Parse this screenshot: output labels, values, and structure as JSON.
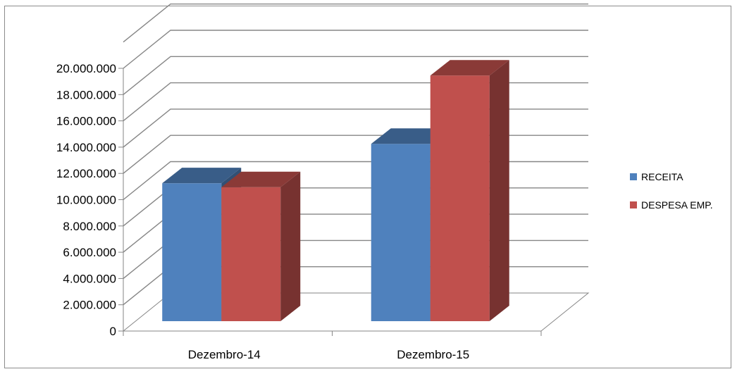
{
  "chart_data": {
    "type": "bar",
    "style": "3d-clustered-column",
    "categories": [
      "Dezembro-14",
      "Dezembro-15"
    ],
    "series": [
      {
        "name": "RECEITA",
        "values": [
          10500000,
          13500000
        ],
        "color": "#4F81BD"
      },
      {
        "name": "DESPESA EMP.",
        "values": [
          10200000,
          18700000
        ],
        "color": "#C0504D"
      }
    ],
    "yticks": [
      "0",
      "2.000.000",
      "4.000.000",
      "6.000.000",
      "8.000.000",
      "10.000.000",
      "12.000.000",
      "14.000.000",
      "16.000.000",
      "18.000.000",
      "20.000.000"
    ],
    "ylim": [
      0,
      20000000
    ],
    "grid": true,
    "legend": "right"
  }
}
